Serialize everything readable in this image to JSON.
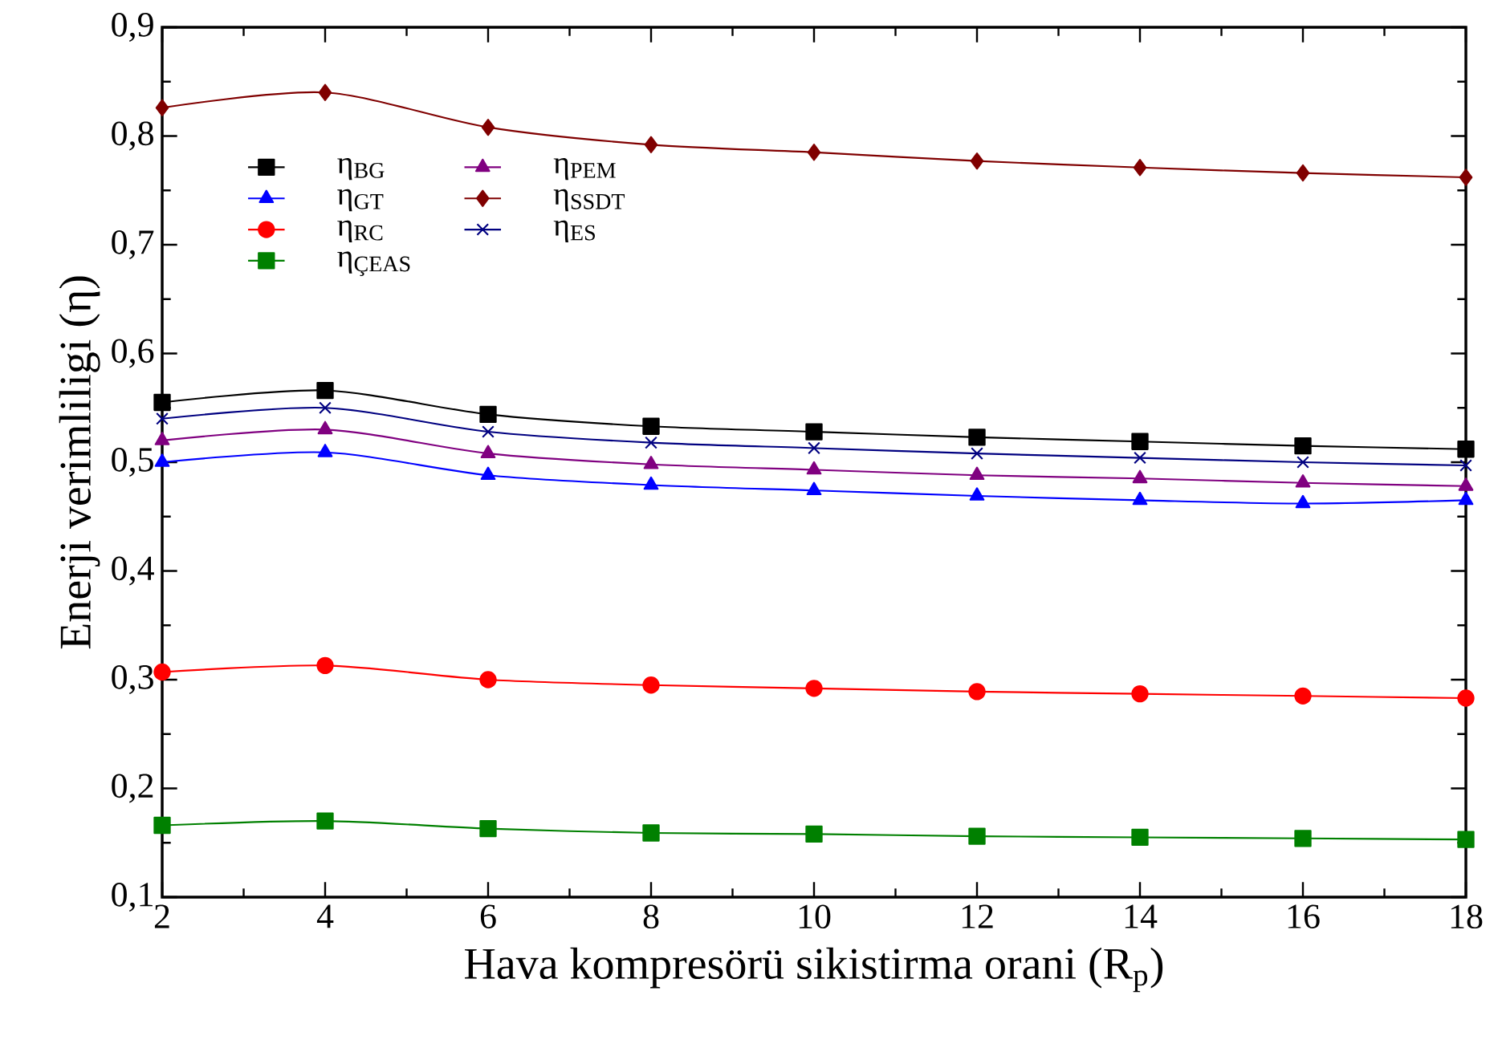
{
  "chart_data": {
    "type": "line",
    "xlabel": "Hava kompresörü sikistirma orani (R$_{p}$)",
    "ylabel": "Enerji verimliligi (η)",
    "x": [
      2,
      4,
      6,
      8,
      10,
      12,
      14,
      16,
      18
    ],
    "xlim": [
      2,
      18
    ],
    "xticks": [
      2,
      4,
      6,
      8,
      10,
      12,
      14,
      16,
      18
    ],
    "ylim": [
      0.1,
      0.9
    ],
    "yticks": [
      {
        "value": 0.1,
        "label": "0,1"
      },
      {
        "value": 0.2,
        "label": "0,2"
      },
      {
        "value": 0.3,
        "label": "0,3"
      },
      {
        "value": 0.4,
        "label": "0,4"
      },
      {
        "value": 0.5,
        "label": "0,5"
      },
      {
        "value": 0.6,
        "label": "0,6"
      },
      {
        "value": 0.7,
        "label": "0,7"
      },
      {
        "value": 0.8,
        "label": "0,8"
      },
      {
        "value": 0.9,
        "label": "0,9"
      }
    ],
    "legend": "top left",
    "grid": false,
    "line_style": "solid",
    "series": [
      {
        "name": "η$_{BG}$",
        "color": "#000000",
        "marker": "square",
        "values": [
          0.555,
          0.566,
          0.544,
          0.533,
          0.528,
          0.523,
          0.519,
          0.515,
          0.512
        ]
      },
      {
        "name": "η$_{GT}$",
        "color": "#0000ff",
        "marker": "triangle",
        "values": [
          0.5,
          0.509,
          0.488,
          0.479,
          0.474,
          0.469,
          0.465,
          0.462,
          0.465
        ]
      },
      {
        "name": "η$_{RC}$",
        "color": "#ff0000",
        "marker": "circle",
        "values": [
          0.307,
          0.313,
          0.3,
          0.295,
          0.292,
          0.289,
          0.287,
          0.285,
          0.283
        ]
      },
      {
        "name": "η$_{ÇEAS}$",
        "color": "#008000",
        "marker": "square",
        "values": [
          0.166,
          0.17,
          0.163,
          0.159,
          0.158,
          0.156,
          0.155,
          0.154,
          0.153
        ]
      },
      {
        "name": "η$_{PEM}$",
        "color": "#800080",
        "marker": "triangle",
        "values": [
          0.52,
          0.53,
          0.508,
          0.498,
          0.493,
          0.488,
          0.485,
          0.481,
          0.478
        ]
      },
      {
        "name": "η$_{SSDT}$",
        "color": "#800000",
        "marker": "diamond",
        "values": [
          0.826,
          0.84,
          0.808,
          0.792,
          0.785,
          0.777,
          0.771,
          0.766,
          0.762
        ]
      },
      {
        "name": "η$_{ES}$",
        "color": "#000080",
        "marker": "cross",
        "values": [
          0.54,
          0.55,
          0.528,
          0.518,
          0.513,
          0.508,
          0.504,
          0.5,
          0.497
        ]
      }
    ]
  }
}
